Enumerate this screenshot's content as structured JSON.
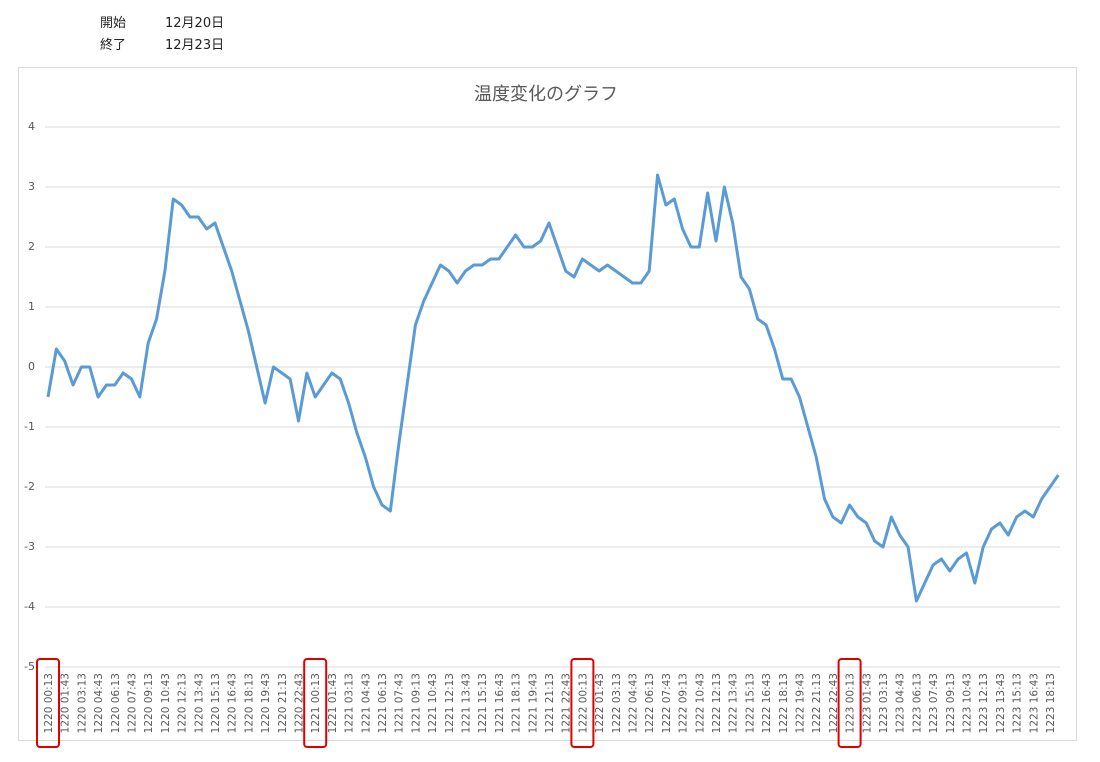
{
  "header": {
    "rows": [
      [
        "開始",
        "12月20日"
      ],
      [
        "終了",
        "12月23日"
      ]
    ]
  },
  "chart_data": {
    "type": "line",
    "title": "温度変化のグラフ",
    "categories": [
      "1220 00:13",
      null,
      "1220 01:43",
      null,
      "1220 03:13",
      null,
      "1220 04:43",
      null,
      "1220 06:13",
      null,
      "1220 07:43",
      null,
      "1220 09:13",
      null,
      "1220 10:43",
      null,
      "1220 12:13",
      null,
      "1220 13:43",
      null,
      "1220 15:13",
      null,
      "1220 16:43",
      null,
      "1220 18:13",
      null,
      "1220 19:43",
      null,
      "1220 21:13",
      null,
      "1220 22:43",
      null,
      "1221 00:13",
      null,
      "1221 01:43",
      null,
      "1221 03:13",
      null,
      "1221 04:43",
      null,
      "1221 06:13",
      null,
      "1221 07:43",
      null,
      "1221 09:13",
      null,
      "1221 10:43",
      null,
      "1221 12:13",
      null,
      "1221 13:43",
      null,
      "1221 15:13",
      null,
      "1221 16:43",
      null,
      "1221 18:13",
      null,
      "1221 19:43",
      null,
      "1221 21:13",
      null,
      "1221 22:43",
      null,
      "1222 00:13",
      null,
      "1222 01:43",
      null,
      "1222 03:13",
      null,
      "1222 04:43",
      null,
      "1222 06:13",
      null,
      "1222 07:43",
      null,
      "1222 09:13",
      null,
      "1222 10:43",
      null,
      "1222 12:13",
      null,
      "1222 13:43",
      null,
      "1222 15:13",
      null,
      "1222 16:43",
      null,
      "1222 18:13",
      null,
      "1222 19:43",
      null,
      "1222 21:13",
      null,
      "1222 22:43",
      null,
      "1223 00:13",
      null,
      "1223 01:43",
      null,
      "1223 03:13",
      null,
      "1223 04:43",
      null,
      "1223 06:13",
      null,
      "1223 07:43",
      null,
      "1223 09:13",
      null,
      "1223 10:43",
      null,
      "1223 12:13",
      null,
      "1223 13:43",
      null,
      "1223 15:13",
      null,
      "1223 16:43",
      null,
      "1223 18:13",
      null
    ],
    "series": [
      {
        "name": "温度",
        "color": "#5b9bd5",
        "values": [
          -0.5,
          0.3,
          0.1,
          -0.3,
          0,
          0,
          -0.5,
          -0.3,
          -0.3,
          -0.1,
          -0.2,
          -0.5,
          0.4,
          0.8,
          1.6,
          2.8,
          2.7,
          2.5,
          2.5,
          2.3,
          2.4,
          2.0,
          1.6,
          1.1,
          0.6,
          0.0,
          -0.6,
          0.0,
          -0.1,
          -0.2,
          -0.9,
          -0.1,
          -0.5,
          -0.3,
          -0.1,
          -0.2,
          -0.6,
          -1.1,
          -1.5,
          -2.0,
          -2.3,
          -2.4,
          -1.3,
          -0.3,
          0.7,
          1.1,
          1.4,
          1.7,
          1.6,
          1.4,
          1.6,
          1.7,
          1.7,
          1.8,
          1.8,
          2.0,
          2.2,
          2.0,
          2.0,
          2.1,
          2.4,
          2.0,
          1.6,
          1.5,
          1.8,
          1.7,
          1.6,
          1.7,
          1.6,
          1.5,
          1.4,
          1.4,
          1.6,
          3.2,
          2.7,
          2.8,
          2.3,
          2.0,
          2.0,
          2.9,
          2.1,
          3.0,
          2.4,
          1.5,
          1.3,
          0.8,
          0.7,
          0.3,
          -0.2,
          -0.2,
          -0.5,
          -1.0,
          -1.5,
          -2.2,
          -2.5,
          -2.6,
          -2.3,
          -2.5,
          -2.6,
          -2.9,
          -3.0,
          -2.5,
          -2.8,
          -3.0,
          -3.9,
          -3.6,
          -3.3,
          -3.2,
          -3.4,
          -3.2,
          -3.1,
          -3.6,
          -3.0,
          -2.7,
          -2.6,
          -2.8,
          -2.5,
          -2.4,
          -2.5,
          -2.2,
          -2.0,
          -1.8
        ]
      }
    ],
    "ylim": [
      -5,
      4
    ],
    "yticks": [
      -5,
      -4,
      -3,
      -2,
      -1,
      0,
      1,
      2,
      3,
      4
    ],
    "grid": true
  }
}
